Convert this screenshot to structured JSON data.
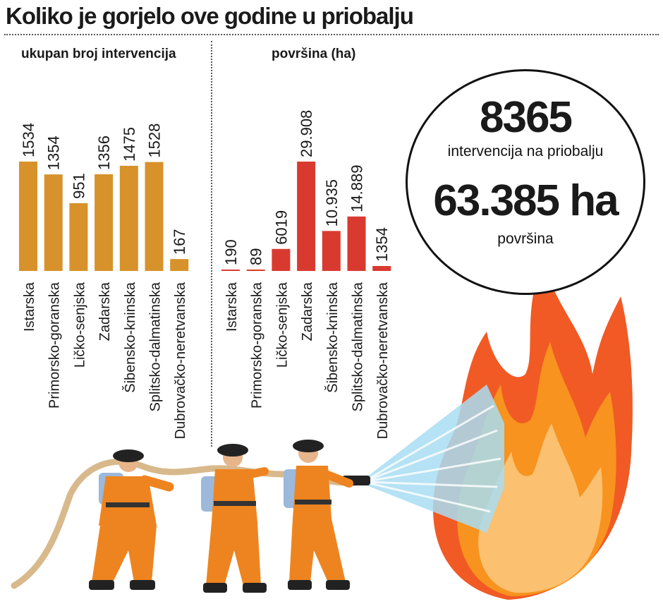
{
  "title": "Koliko je gorjelo ove godine u priobalju",
  "stats": {
    "interventions_value": "8365",
    "interventions_label": "intervencija na priobalju",
    "area_value": "63.385 ha",
    "area_label": "površina"
  },
  "colors": {
    "bars_interventions": "#D7922B",
    "bars_area": "#D93A30",
    "flame_outer": "#F15A24",
    "flame_mid": "#F7931E",
    "flame_inner": "#FBC070",
    "firefighter_suit": "#EE8420",
    "water": "#A8DDF2"
  },
  "chart_data": [
    {
      "type": "bar",
      "title": "ukupan broj intervencija",
      "categories": [
        "Istarska",
        "Primorsko-goranska",
        "Ličko-senjska",
        "Zadarska",
        "Šibensko-kninska",
        "Splitsko-dalmatinska",
        "Dubrovačko-neretvanska"
      ],
      "values": [
        1534,
        1354,
        951,
        1356,
        1475,
        1528,
        167
      ],
      "value_labels": [
        "1534",
        "1354",
        "951",
        "1356",
        "1475",
        "1528",
        "167"
      ],
      "ylim": [
        0,
        1534
      ],
      "grid": false
    },
    {
      "type": "bar",
      "title": "površina (ha)",
      "categories": [
        "Istarska",
        "Primorsko-goranska",
        "Ličko-senjska",
        "Zadarska",
        "Šibensko-kninska",
        "Splitsko-dalmatinska",
        "Dubrovačko-neretvanska"
      ],
      "values": [
        190,
        89,
        6019,
        29908,
        10935,
        14889,
        1354
      ],
      "value_labels": [
        "190",
        "89",
        "6019",
        "29.908",
        "10.935",
        "14.889",
        "1354"
      ],
      "ylim": [
        0,
        29908
      ],
      "grid": false
    }
  ]
}
